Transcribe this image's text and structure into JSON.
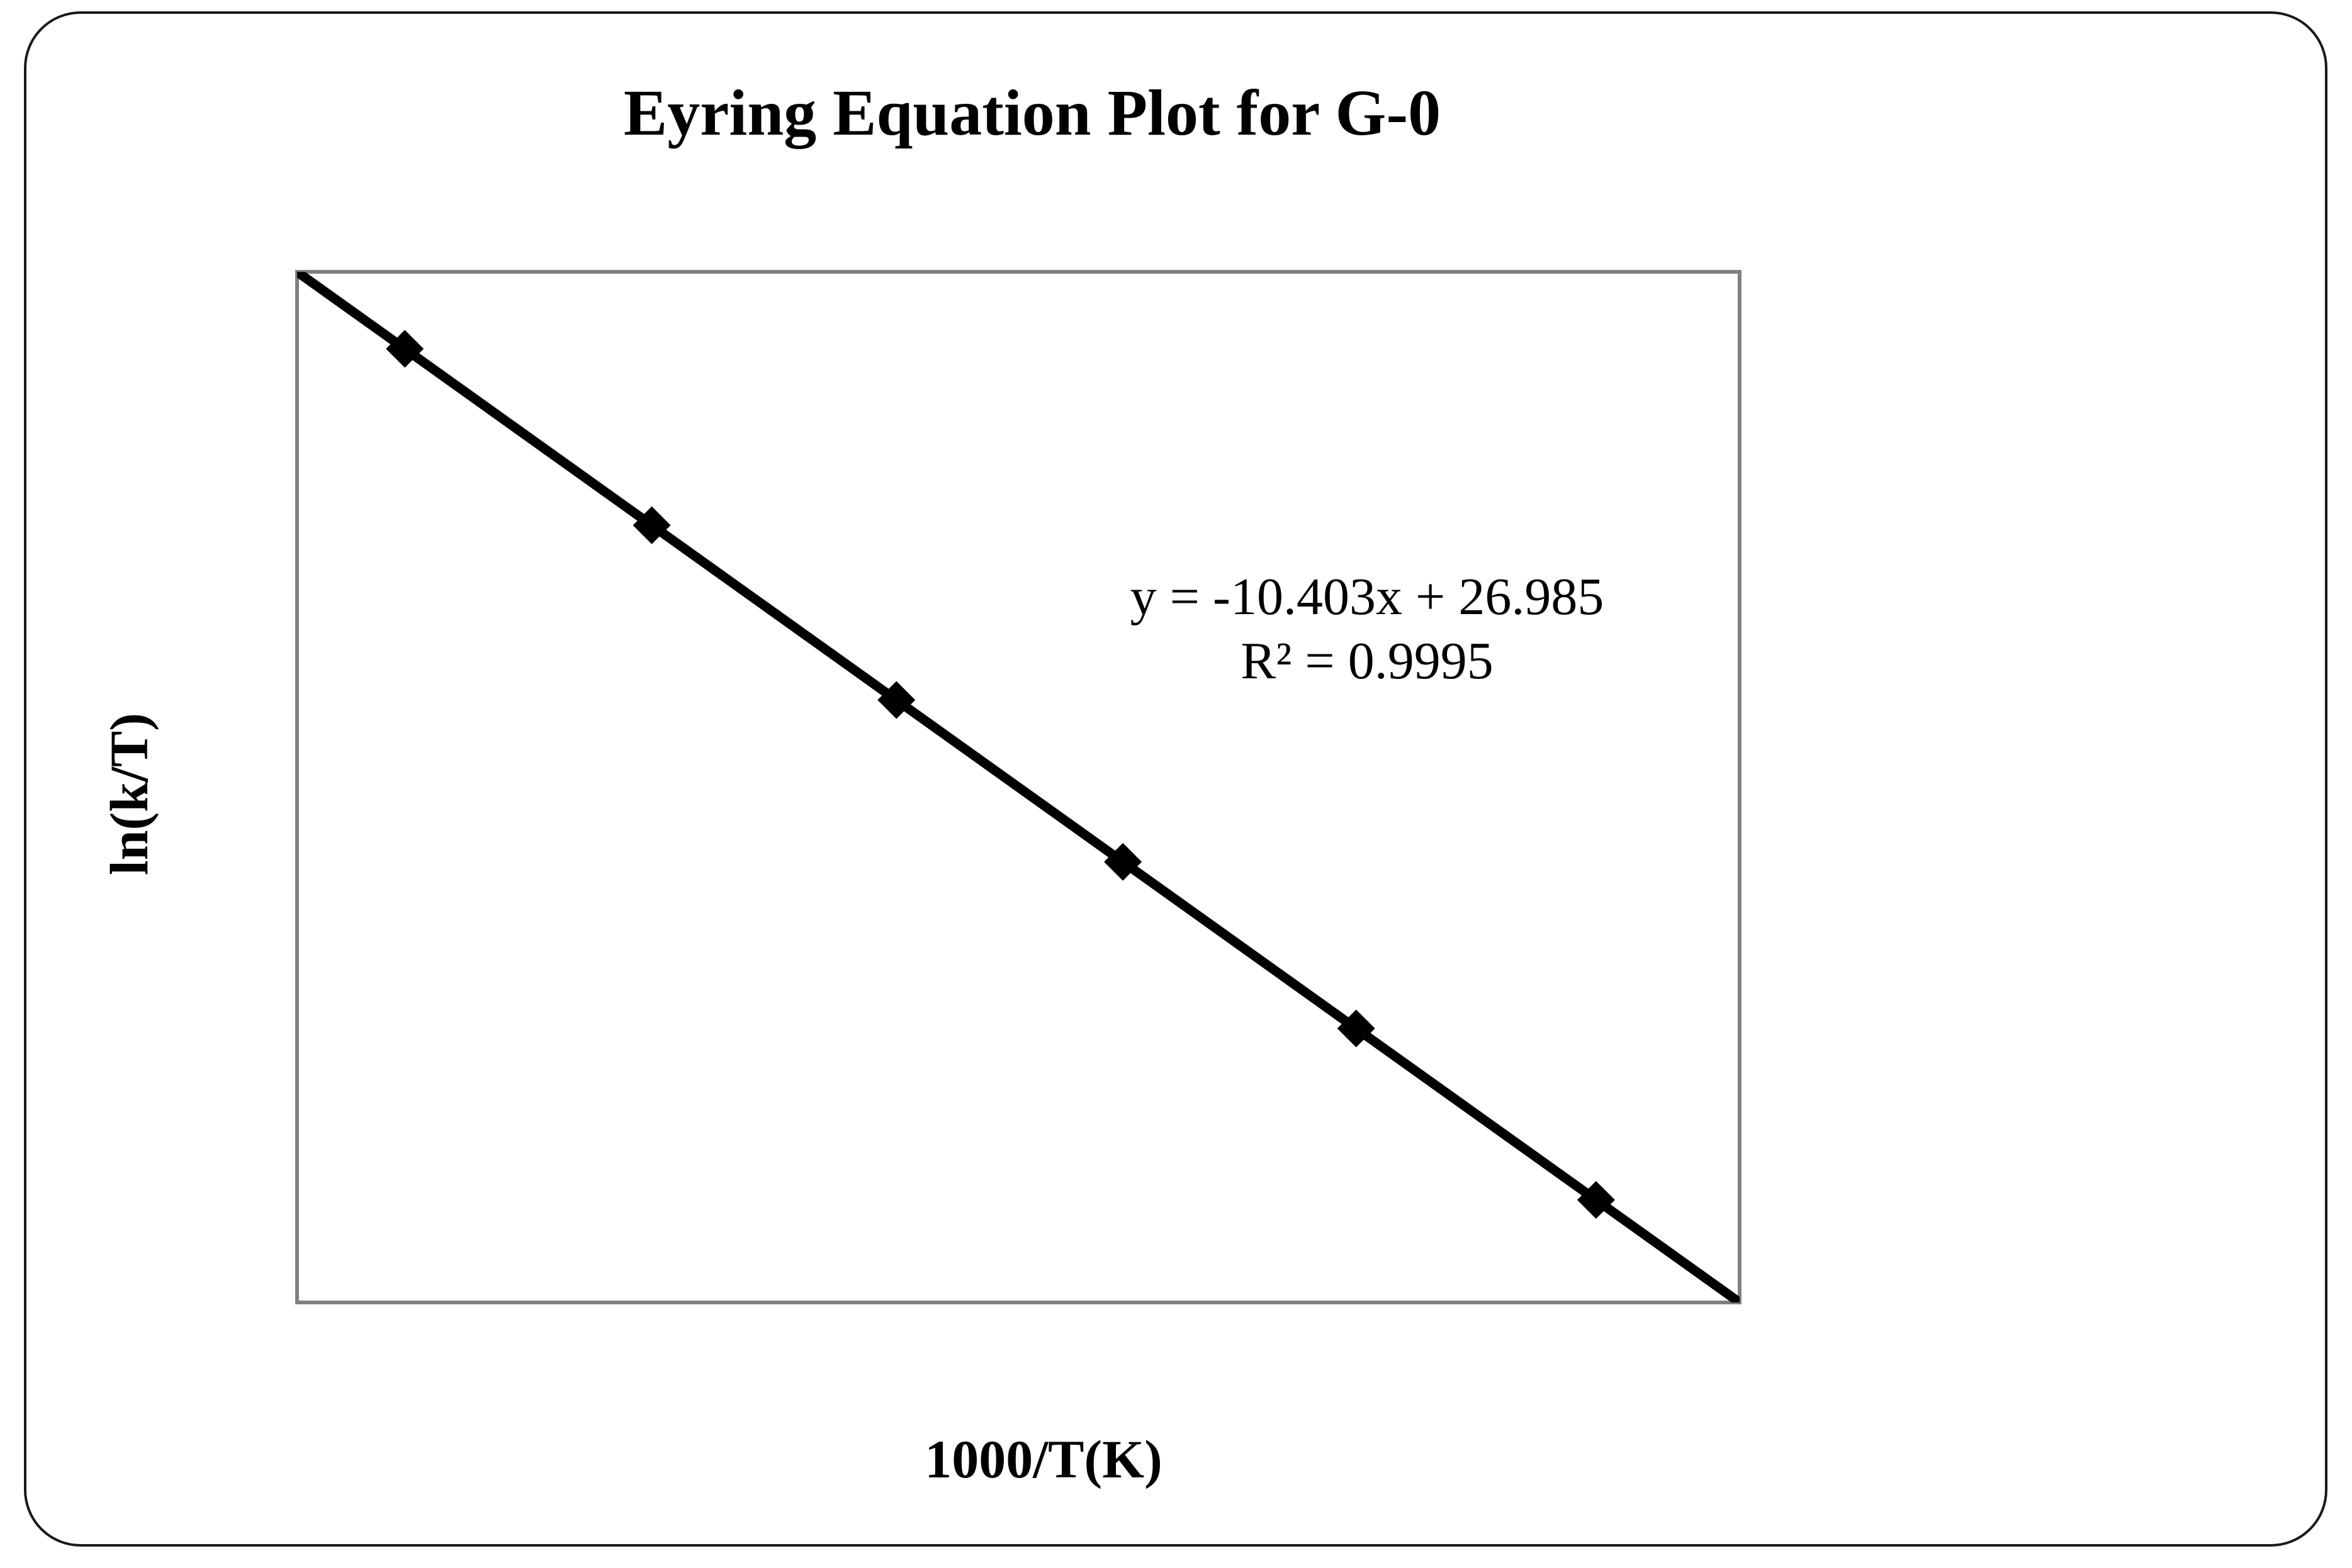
{
  "chart_data": {
    "type": "scatter",
    "title": "Eyring Equation Plot for G-0",
    "xlabel": "1000/T(K)",
    "ylabel": "ln(k/T)",
    "xlim": [
      2.7,
      3.5
    ],
    "ylim": [
      -9.8,
      -9.0
    ],
    "grid": false,
    "legend": "none",
    "marker": "diamond",
    "color": "#000000",
    "series": [
      {
        "x": [
          2.8108,
          2.8846,
          2.9577,
          3.0254,
          3.0951,
          3.1668
        ],
        "y": [
          -2.2558,
          -3.0235,
          -3.7839,
          -4.4882,
          -5.2133,
          -5.9592
        ]
      }
    ],
    "trendline": {
      "slope": -10.403,
      "intercept": 26.985,
      "equation": "y = -10.403x + 26.985",
      "r_squared": "R² = 0.9995"
    }
  }
}
